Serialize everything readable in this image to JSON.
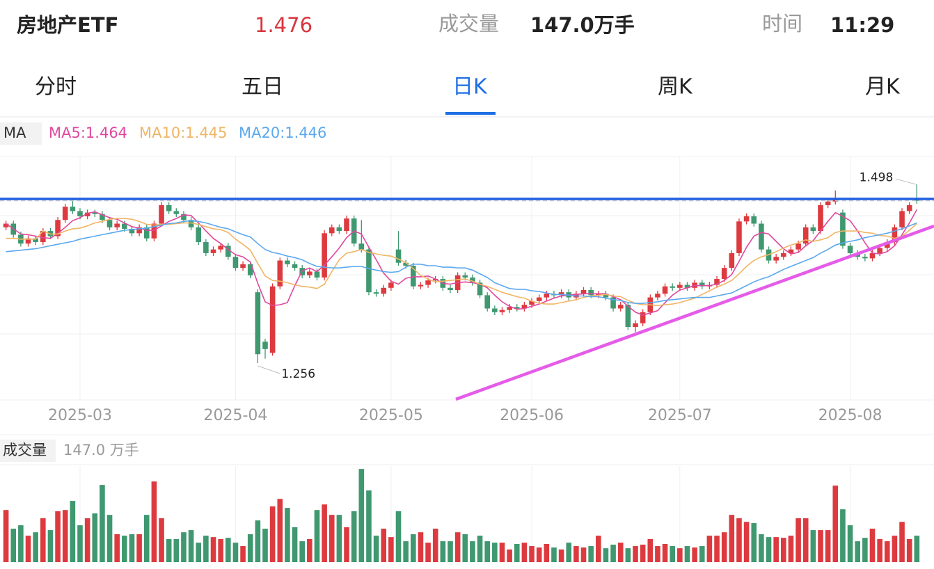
{
  "header": {
    "name": "房地产ETF",
    "volume_title": "成交量",
    "volume": "147.0万手",
    "time_title": "时间",
    "time": "11:29"
  },
  "tabs": [
    "分时",
    "五日",
    "日K",
    "周K",
    "月K"
  ],
  "active_tab": 2,
  "chart_data": {
    "type": "candlestick",
    "legend_title": "MA",
    "up_color": "#dd3a3f",
    "down_color": "#3f9870",
    "ylim": [
      1.206,
      1.536
    ],
    "categories": [
      null,
      null,
      null,
      null,
      null,
      null,
      null,
      null,
      null,
      null,
      "2025-03",
      null,
      null,
      null,
      null,
      null,
      null,
      null,
      null,
      null,
      null,
      null,
      null,
      null,
      null,
      null,
      null,
      null,
      null,
      null,
      null,
      "2025-04",
      null,
      null,
      null,
      null,
      null,
      null,
      null,
      null,
      null,
      null,
      null,
      null,
      null,
      null,
      null,
      null,
      null,
      null,
      null,
      null,
      "2025-05",
      null,
      null,
      null,
      null,
      null,
      null,
      null,
      null,
      null,
      null,
      null,
      null,
      null,
      null,
      null,
      null,
      null,
      null,
      "2025-06",
      null,
      null,
      null,
      null,
      null,
      null,
      null,
      null,
      null,
      null,
      null,
      null,
      null,
      null,
      null,
      null,
      null,
      null,
      null,
      "2025-07",
      null,
      null,
      null,
      null,
      null,
      null,
      null,
      null,
      null,
      null,
      null,
      null,
      null,
      null,
      null,
      null,
      null,
      null,
      null,
      null,
      null,
      null,
      "2025-08",
      null,
      null,
      null,
      null,
      null,
      null,
      null,
      null,
      null
    ],
    "open": [
      1.44,
      1.445,
      1.43,
      1.418,
      1.425,
      1.42,
      1.435,
      1.428,
      1.45,
      1.468,
      1.462,
      1.455,
      1.46,
      1.458,
      1.45,
      1.44,
      1.445,
      1.438,
      1.432,
      1.44,
      1.425,
      1.445,
      1.47,
      1.462,
      1.458,
      1.45,
      1.44,
      1.42,
      1.405,
      1.41,
      1.415,
      1.4,
      1.385,
      1.39,
      1.352,
      1.285,
      1.27,
      1.36,
      1.395,
      1.39,
      1.385,
      1.375,
      1.38,
      1.372,
      1.432,
      1.44,
      1.435,
      1.452,
      1.418,
      1.41,
      1.352,
      1.35,
      1.358,
      1.41,
      1.392,
      1.388,
      1.36,
      1.362,
      1.368,
      1.37,
      1.358,
      1.355,
      1.375,
      1.372,
      1.365,
      1.348,
      1.33,
      1.325,
      1.328,
      1.332,
      1.33,
      1.335,
      1.34,
      1.345,
      1.35,
      1.348,
      1.352,
      1.345,
      1.35,
      1.355,
      1.348,
      1.35,
      1.345,
      1.33,
      1.335,
      1.305,
      1.31,
      1.325,
      1.345,
      1.35,
      1.36,
      1.358,
      1.362,
      1.358,
      1.365,
      1.36,
      1.362,
      1.37,
      1.385,
      1.405,
      1.448,
      1.455,
      1.445,
      1.41,
      1.395,
      1.4,
      1.405,
      1.41,
      1.418,
      1.44,
      1.435,
      1.47,
      1.475,
      1.46,
      1.415,
      1.405,
      1.4,
      1.398,
      1.405,
      1.412,
      1.42,
      1.44,
      1.462,
      1.478
    ],
    "high": [
      1.449,
      1.449,
      1.434,
      1.429,
      1.429,
      1.439,
      1.439,
      1.454,
      1.472,
      1.478,
      1.466,
      1.464,
      1.464,
      1.462,
      1.454,
      1.449,
      1.449,
      1.442,
      1.444,
      1.444,
      1.449,
      1.474,
      1.474,
      1.466,
      1.462,
      1.454,
      1.444,
      1.424,
      1.414,
      1.419,
      1.419,
      1.404,
      1.394,
      1.394,
      1.356,
      1.289,
      1.364,
      1.399,
      1.399,
      1.394,
      1.389,
      1.384,
      1.384,
      1.436,
      1.444,
      1.444,
      1.456,
      1.456,
      1.45,
      1.414,
      1.356,
      1.362,
      1.369,
      1.435,
      1.396,
      1.392,
      1.366,
      1.372,
      1.374,
      1.374,
      1.362,
      1.379,
      1.379,
      1.376,
      1.369,
      1.352,
      1.334,
      1.332,
      1.336,
      1.336,
      1.339,
      1.344,
      1.349,
      1.354,
      1.354,
      1.356,
      1.356,
      1.354,
      1.359,
      1.359,
      1.354,
      1.354,
      1.349,
      1.339,
      1.339,
      1.314,
      1.329,
      1.349,
      1.354,
      1.364,
      1.364,
      1.366,
      1.366,
      1.369,
      1.369,
      1.366,
      1.374,
      1.389,
      1.409,
      1.452,
      1.459,
      1.459,
      1.449,
      1.414,
      1.404,
      1.409,
      1.414,
      1.422,
      1.444,
      1.444,
      1.474,
      1.479,
      1.49,
      1.464,
      1.419,
      1.409,
      1.404,
      1.409,
      1.416,
      1.424,
      1.444,
      1.466,
      1.474,
      1.498
    ],
    "low": [
      1.436,
      1.426,
      1.414,
      1.414,
      1.416,
      1.416,
      1.424,
      1.424,
      1.446,
      1.458,
      1.451,
      1.451,
      1.454,
      1.446,
      1.436,
      1.436,
      1.434,
      1.428,
      1.428,
      1.421,
      1.421,
      1.441,
      1.458,
      1.454,
      1.446,
      1.436,
      1.416,
      1.401,
      1.401,
      1.406,
      1.396,
      1.381,
      1.381,
      1.371,
      1.256,
      1.262,
      1.266,
      1.356,
      1.386,
      1.381,
      1.371,
      1.371,
      1.368,
      1.368,
      1.428,
      1.431,
      1.431,
      1.414,
      1.406,
      1.348,
      1.346,
      1.346,
      1.354,
      1.388,
      1.384,
      1.356,
      1.356,
      1.358,
      1.364,
      1.354,
      1.351,
      1.351,
      1.368,
      1.361,
      1.344,
      1.326,
      1.321,
      1.321,
      1.324,
      1.326,
      1.326,
      1.331,
      1.336,
      1.341,
      1.344,
      1.344,
      1.341,
      1.341,
      1.346,
      1.344,
      1.344,
      1.341,
      1.326,
      1.326,
      1.301,
      1.298,
      1.306,
      1.321,
      1.341,
      1.346,
      1.354,
      1.354,
      1.354,
      1.354,
      1.356,
      1.356,
      1.358,
      1.366,
      1.381,
      1.401,
      1.444,
      1.441,
      1.406,
      1.391,
      1.391,
      1.396,
      1.401,
      1.406,
      1.414,
      1.431,
      1.431,
      1.466,
      1.471,
      1.411,
      1.401,
      1.396,
      1.394,
      1.394,
      1.401,
      1.408,
      1.416,
      1.436,
      1.458,
      1.472
    ],
    "close": [
      1.445,
      1.43,
      1.418,
      1.425,
      1.42,
      1.435,
      1.428,
      1.45,
      1.468,
      1.462,
      1.455,
      1.46,
      1.458,
      1.45,
      1.44,
      1.445,
      1.438,
      1.432,
      1.44,
      1.425,
      1.445,
      1.47,
      1.462,
      1.458,
      1.45,
      1.44,
      1.42,
      1.405,
      1.41,
      1.415,
      1.4,
      1.385,
      1.39,
      1.375,
      1.268,
      1.275,
      1.36,
      1.395,
      1.39,
      1.385,
      1.375,
      1.38,
      1.372,
      1.432,
      1.44,
      1.435,
      1.452,
      1.418,
      1.41,
      1.352,
      1.35,
      1.358,
      1.365,
      1.392,
      1.388,
      1.36,
      1.362,
      1.368,
      1.37,
      1.358,
      1.355,
      1.375,
      1.372,
      1.365,
      1.348,
      1.33,
      1.325,
      1.328,
      1.332,
      1.33,
      1.335,
      1.34,
      1.345,
      1.35,
      1.348,
      1.352,
      1.345,
      1.35,
      1.355,
      1.348,
      1.35,
      1.345,
      1.33,
      1.335,
      1.305,
      1.31,
      1.325,
      1.345,
      1.35,
      1.36,
      1.358,
      1.362,
      1.358,
      1.365,
      1.36,
      1.362,
      1.37,
      1.385,
      1.405,
      1.448,
      1.455,
      1.445,
      1.41,
      1.395,
      1.4,
      1.405,
      1.41,
      1.418,
      1.44,
      1.435,
      1.47,
      1.475,
      1.478,
      1.415,
      1.405,
      1.4,
      1.398,
      1.405,
      1.412,
      1.42,
      1.44,
      1.462,
      1.47,
      1.476
    ],
    "series": [
      {
        "name": "MA5:",
        "color": "#e0479e",
        "values": [
          1.445,
          1.438,
          1.431,
          1.43,
          1.428,
          1.426,
          1.425,
          1.432,
          1.44,
          1.449,
          1.453,
          1.459,
          1.461,
          1.457,
          1.453,
          1.451,
          1.446,
          1.441,
          1.439,
          1.436,
          1.436,
          1.442,
          1.448,
          1.452,
          1.457,
          1.456,
          1.446,
          1.435,
          1.425,
          1.418,
          1.41,
          1.403,
          1.4,
          1.393,
          1.364,
          1.339,
          1.334,
          1.335,
          1.338,
          1.361,
          1.381,
          1.385,
          1.38,
          1.389,
          1.4,
          1.412,
          1.426,
          1.435,
          1.431,
          1.413,
          1.396,
          1.378,
          1.367,
          1.363,
          1.371,
          1.373,
          1.373,
          1.374,
          1.37,
          1.364,
          1.363,
          1.365,
          1.366,
          1.365,
          1.363,
          1.358,
          1.348,
          1.339,
          1.333,
          1.329,
          1.33,
          1.333,
          1.336,
          1.34,
          1.344,
          1.347,
          1.348,
          1.349,
          1.35,
          1.35,
          1.35,
          1.35,
          1.346,
          1.342,
          1.333,
          1.325,
          1.321,
          1.324,
          1.327,
          1.338,
          1.348,
          1.355,
          1.358,
          1.361,
          1.361,
          1.361,
          1.363,
          1.368,
          1.376,
          1.394,
          1.413,
          1.428,
          1.433,
          1.431,
          1.421,
          1.411,
          1.404,
          1.406,
          1.415,
          1.422,
          1.435,
          1.448,
          1.46,
          1.455,
          1.449,
          1.435,
          1.419,
          1.405,
          1.404,
          1.407,
          1.415,
          1.43,
          1.446,
          1.464
        ]
      },
      {
        "name": "MA10:",
        "color": "#f0b565",
        "values": [
          1.425,
          1.425,
          1.424,
          1.424,
          1.424,
          1.435,
          1.431,
          1.431,
          1.435,
          1.438,
          1.439,
          1.442,
          1.446,
          1.448,
          1.451,
          1.452,
          1.452,
          1.451,
          1.448,
          1.444,
          1.443,
          1.444,
          1.444,
          1.445,
          1.446,
          1.446,
          1.444,
          1.441,
          1.438,
          1.437,
          1.433,
          1.424,
          1.417,
          1.409,
          1.391,
          1.374,
          1.368,
          1.367,
          1.365,
          1.362,
          1.36,
          1.359,
          1.357,
          1.363,
          1.38,
          1.396,
          1.405,
          1.407,
          1.41,
          1.406,
          1.404,
          1.402,
          1.401,
          1.397,
          1.392,
          1.384,
          1.375,
          1.37,
          1.366,
          1.367,
          1.368,
          1.369,
          1.37,
          1.367,
          1.363,
          1.36,
          1.356,
          1.352,
          1.349,
          1.346,
          1.344,
          1.34,
          1.337,
          1.336,
          1.336,
          1.338,
          1.34,
          1.342,
          1.345,
          1.347,
          1.348,
          1.349,
          1.347,
          1.346,
          1.341,
          1.337,
          1.335,
          1.335,
          1.334,
          1.335,
          1.336,
          1.338,
          1.341,
          1.344,
          1.349,
          1.354,
          1.359,
          1.363,
          1.368,
          1.377,
          1.387,
          1.395,
          1.4,
          1.403,
          1.407,
          1.412,
          1.416,
          1.419,
          1.423,
          1.421,
          1.423,
          1.426,
          1.433,
          1.435,
          1.435,
          1.435,
          1.433,
          1.432,
          1.429,
          1.428,
          1.425,
          1.428,
          1.436,
          1.445
        ]
      },
      {
        "name": "MA20:",
        "color": "#5ba8ee",
        "values": [
          1.407,
          1.408,
          1.409,
          1.41,
          1.411,
          1.413,
          1.415,
          1.417,
          1.419,
          1.421,
          1.424,
          1.426,
          1.428,
          1.43,
          1.432,
          1.434,
          1.436,
          1.437,
          1.438,
          1.439,
          1.441,
          1.443,
          1.445,
          1.446,
          1.448,
          1.449,
          1.448,
          1.446,
          1.443,
          1.44,
          1.438,
          1.434,
          1.43,
          1.427,
          1.418,
          1.41,
          1.406,
          1.404,
          1.401,
          1.399,
          1.396,
          1.391,
          1.387,
          1.386,
          1.385,
          1.385,
          1.386,
          1.387,
          1.387,
          1.384,
          1.382,
          1.38,
          1.379,
          1.38,
          1.386,
          1.39,
          1.39,
          1.388,
          1.388,
          1.386,
          1.386,
          1.385,
          1.385,
          1.382,
          1.377,
          1.372,
          1.365,
          1.361,
          1.357,
          1.356,
          1.356,
          1.354,
          1.353,
          1.351,
          1.349,
          1.349,
          1.348,
          1.347,
          1.347,
          1.346,
          1.346,
          1.344,
          1.342,
          1.341,
          1.338,
          1.337,
          1.337,
          1.338,
          1.339,
          1.341,
          1.342,
          1.343,
          1.344,
          1.345,
          1.345,
          1.345,
          1.347,
          1.349,
          1.351,
          1.356,
          1.361,
          1.366,
          1.37,
          1.373,
          1.378,
          1.383,
          1.387,
          1.391,
          1.395,
          1.399,
          1.405,
          1.41,
          1.416,
          1.419,
          1.421,
          1.423,
          1.426,
          1.428,
          1.43,
          1.432,
          1.435,
          1.438,
          1.442,
          1.446
        ]
      }
    ],
    "volume_title": "成交量",
    "volume_label": "147.0 万手",
    "volume_ylim": [
      0,
      535
    ],
    "volume": [
      290,
      186,
      205,
      147,
      166,
      244,
      178,
      283,
      290,
      341,
      205,
      244,
      271,
      430,
      263,
      155,
      147,
      155,
      155,
      263,
      449,
      244,
      128,
      128,
      166,
      178,
      108,
      147,
      139,
      128,
      135,
      108,
      89,
      155,
      232,
      186,
      310,
      352,
      302,
      194,
      116,
      128,
      290,
      321,
      263,
      263,
      194,
      283,
      519,
      399,
      147,
      186,
      139,
      283,
      116,
      155,
      166,
      108,
      186,
      116,
      116,
      166,
      155,
      116,
      147,
      116,
      108,
      108,
      70,
      101,
      108,
      89,
      81,
      101,
      81,
      70,
      108,
      89,
      81,
      89,
      147,
      77,
      97,
      108,
      77,
      89,
      97,
      128,
      89,
      101,
      89,
      77,
      89,
      81,
      89,
      147,
      147,
      166,
      263,
      244,
      224,
      217,
      155,
      139,
      139,
      135,
      147,
      244,
      244,
      178,
      178,
      178,
      426,
      294,
      205,
      116,
      135,
      186,
      128,
      116,
      147,
      224,
      128,
      147
    ]
  }
}
